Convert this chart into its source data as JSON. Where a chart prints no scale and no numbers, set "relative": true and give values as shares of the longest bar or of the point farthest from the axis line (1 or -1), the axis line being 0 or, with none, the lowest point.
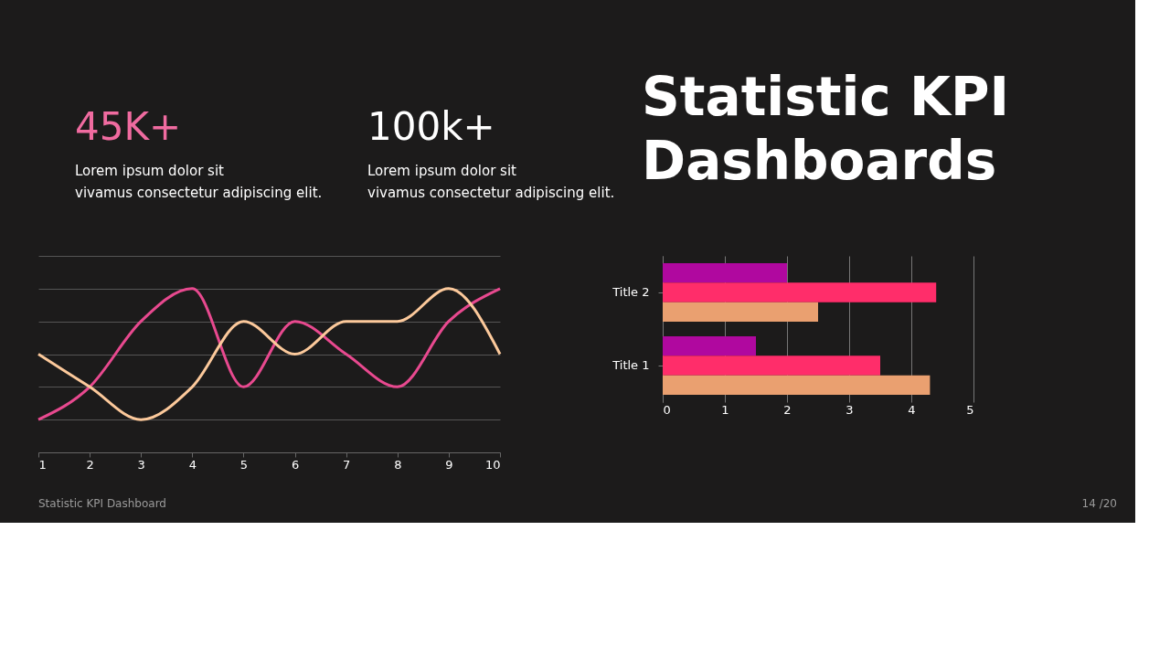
{
  "chart_data": [
    {
      "type": "other",
      "title": "Statistic KPI Dashboards",
      "annotations": [
        "45K+",
        "Lorem ipsum dolor sit vivamus consectetur adipiscing elit.",
        "100k+",
        "Lorem ipsum dolor sit vivamus consectetur adipiscing elit.",
        "Statistic KPI Dashboard",
        "14 /20"
      ]
    },
    {
      "type": "line",
      "relative": true,
      "x": [
        1,
        2,
        3,
        4,
        5,
        6,
        7,
        8,
        9,
        10
      ],
      "xlim": [
        1,
        10
      ],
      "xticks": [
        1,
        2,
        3,
        4,
        5,
        6,
        7,
        8,
        9,
        10
      ],
      "grid": "y",
      "marker": "none",
      "line_style": "solid",
      "series": [
        {
          "color": "#e8498f",
          "values": [
            0.2,
            0.4,
            0.8,
            1,
            0.4,
            0.8,
            0.6,
            0.4,
            0.8,
            1
          ]
        },
        {
          "color": "#fcc99b",
          "values": [
            0.6,
            0.4,
            0.2,
            0.4,
            0.8,
            0.6,
            0.8,
            0.8,
            1,
            0.6
          ]
        }
      ]
    },
    {
      "type": "bar",
      "orientation": "horizontal",
      "categories": [
        "Title 2",
        "Title 1"
      ],
      "xlim": [
        0,
        5
      ],
      "xticks": [
        0,
        1,
        2,
        3,
        4,
        5
      ],
      "grid": "x",
      "series": [
        {
          "color": "#b0089f",
          "values": [
            2,
            1.5
          ]
        },
        {
          "color": "#ff2d6a",
          "values": [
            4.4,
            3.5
          ]
        },
        {
          "color": "#eaa070",
          "values": [
            2.5,
            4.3
          ]
        }
      ]
    }
  ]
}
